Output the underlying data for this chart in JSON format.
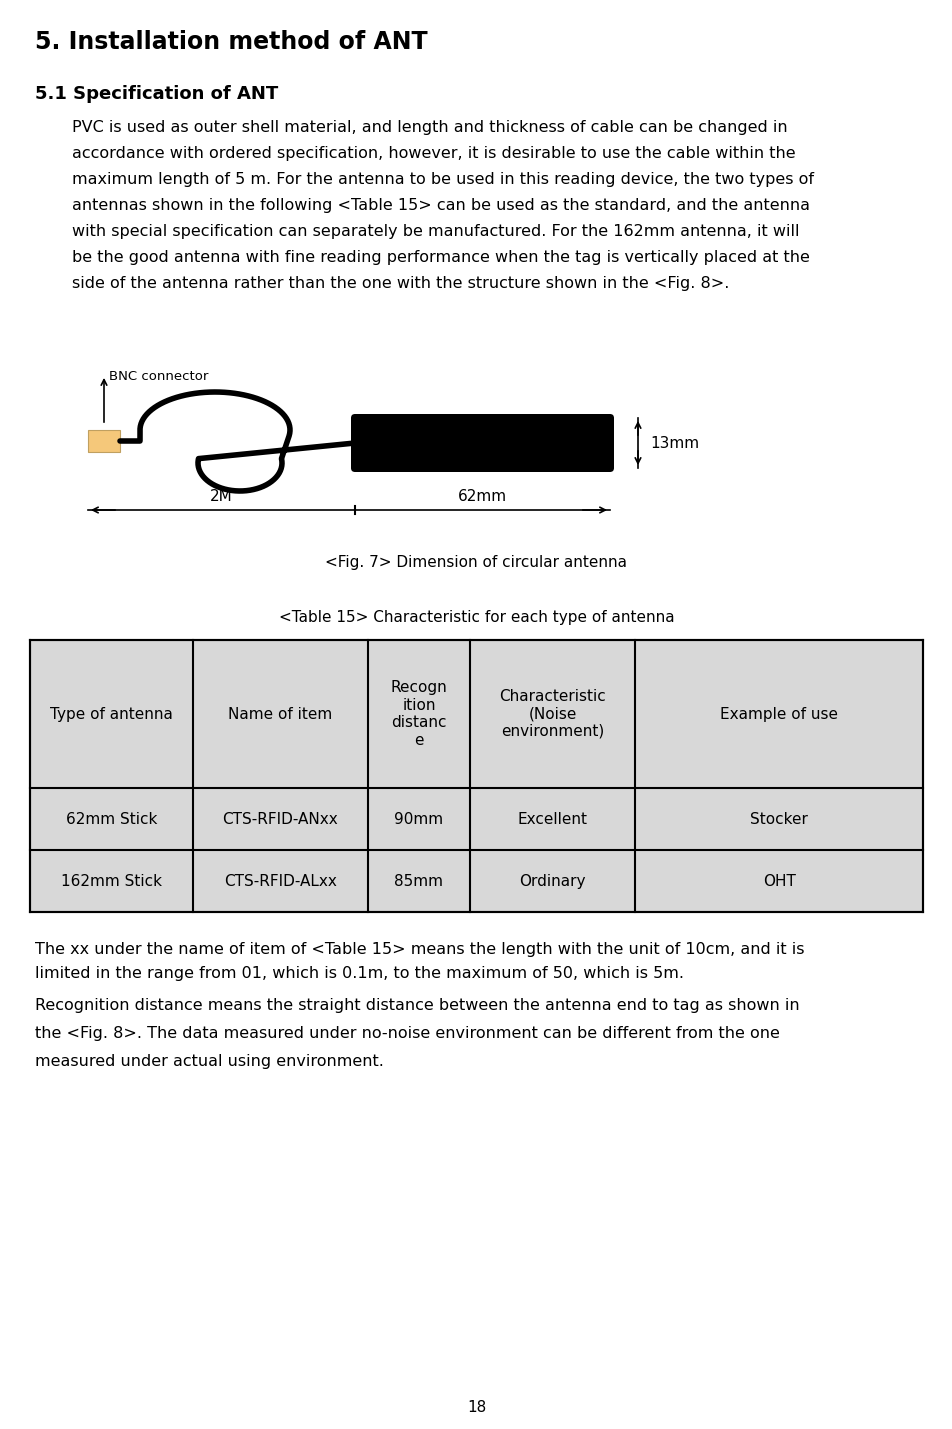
{
  "title": "5. Installation method of ANT",
  "subtitle": "5.1 Specification of ANT",
  "body_lines": [
    "PVC is used as outer shell material, and length and thickness of cable can be changed in",
    "accordance with ordered specification, however, it is desirable to use the cable within the",
    "maximum length of 5 m. For the antenna to be used in this reading device, the two types of",
    "antennas shown in the following <Table 15> can be used as the standard, and the antenna",
    "with special specification can separately be manufactured. For the 162mm antenna, it will",
    "be the good antenna with fine reading performance when the tag is vertically placed at the",
    "side of the antenna rather than the one with the structure shown in the <Fig. 8>."
  ],
  "fig_caption": "<Fig. 7> Dimension of circular antenna",
  "table_title": "<Table 15> Characteristic for each type of antenna",
  "table_headers": [
    "Type of antenna",
    "Name of item",
    "Recogn\nition\ndistanc\ne",
    "Characteristic\n(Noise\nenvironment)",
    "Example of use"
  ],
  "table_rows": [
    [
      "62mm Stick",
      "CTS-RFID-ANxx",
      "90mm",
      "Excellent",
      "Stocker"
    ],
    [
      "162mm Stick",
      "CTS-RFID-ALxx",
      "85mm",
      "Ordinary",
      "OHT"
    ]
  ],
  "footnote1_lines": [
    "The xx under the name of item of <Table 15> means the length with the unit of 10cm, and it is",
    "limited in the range from 01, which is 0.1m, to the maximum of 50, which is 5m."
  ],
  "footnote2_lines": [
    "Recognition distance means the straight distance between the antenna end to tag as shown in",
    "the <Fig. 8>. The data measured under no-noise environment can be different from the one",
    "measured under actual using environment."
  ],
  "page_number": "18",
  "bg_color": "#ffffff",
  "text_color": "#000000",
  "table_bg": "#d8d8d8",
  "table_border": "#000000",
  "antenna_body_color": "#000000",
  "connector_color": "#f5c87a",
  "fig_label_2m": "2M",
  "fig_label_62mm": "62mm",
  "fig_label_13mm": "13mm",
  "fig_label_bnc": "BNC connector",
  "title_fontsize": 17,
  "subtitle_fontsize": 13,
  "body_fontsize": 11.5,
  "table_fontsize": 11,
  "caption_fontsize": 11,
  "footnote_fontsize": 11.5
}
